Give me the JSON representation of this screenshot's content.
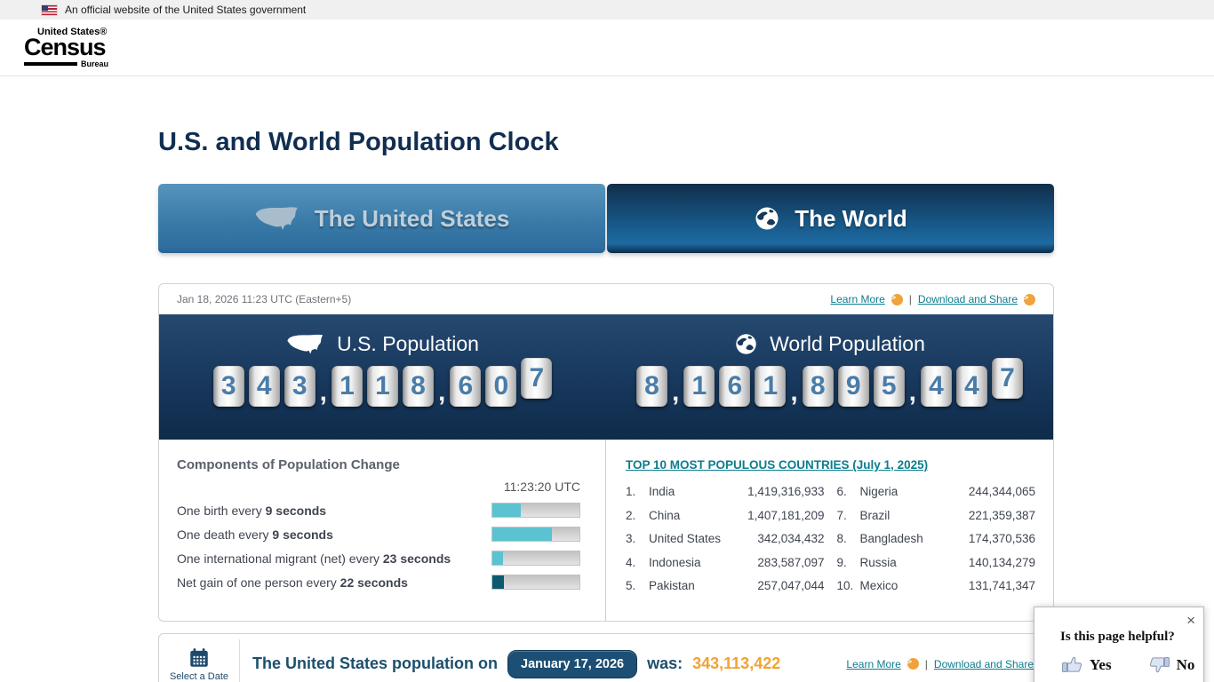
{
  "banner": {
    "text": "An official website of the United States government"
  },
  "logo": {
    "top": "United States®",
    "main": "Census",
    "sub": "Bureau"
  },
  "page": {
    "title": "U.S. and World Population Clock"
  },
  "tabs": {
    "us": "The United States",
    "world": "The World"
  },
  "panel": {
    "datetime": "Jan 18, 2026 11:23 UTC (Eastern+5)",
    "learn_more": "Learn More",
    "download_share": "Download and Share",
    "us_title": "U.S. Population",
    "us_value": "343,118,607",
    "world_title": "World Population",
    "world_value": "8,161,895,447"
  },
  "components": {
    "title": "Components of Population Change",
    "time": "11:23:20 UTC",
    "rows": [
      {
        "label": "One birth every",
        "bold": "9 seconds",
        "fill_pct": 33,
        "fill_color": "#5bc2d2"
      },
      {
        "label": "One death every",
        "bold": "9 seconds",
        "fill_pct": 68,
        "fill_color": "#5bc2d2"
      },
      {
        "label": "One international migrant (net) every",
        "bold": "23 seconds",
        "fill_pct": 12,
        "fill_color": "#5bc2d2"
      },
      {
        "label": "Net gain of one person every",
        "bold": "22 seconds",
        "fill_pct": 13,
        "fill_color": "#0b5a6e"
      }
    ]
  },
  "top10": {
    "title": "TOP 10 MOST POPULOUS COUNTRIES (July 1, 2025)",
    "columns": [
      [
        {
          "rank": "1.",
          "name": "India",
          "value": "1,419,316,933"
        },
        {
          "rank": "2.",
          "name": "China",
          "value": "1,407,181,209"
        },
        {
          "rank": "3.",
          "name": "United States",
          "value": "342,034,432"
        },
        {
          "rank": "4.",
          "name": "Indonesia",
          "value": "283,587,097"
        },
        {
          "rank": "5.",
          "name": "Pakistan",
          "value": "257,047,044"
        }
      ],
      [
        {
          "rank": "6.",
          "name": "Nigeria",
          "value": "244,344,065"
        },
        {
          "rank": "7.",
          "name": "Brazil",
          "value": "221,359,387"
        },
        {
          "rank": "8.",
          "name": "Bangladesh",
          "value": "174,370,536"
        },
        {
          "rank": "9.",
          "name": "Russia",
          "value": "140,134,279"
        },
        {
          "rank": "10.",
          "name": "Mexico",
          "value": "131,741,347"
        }
      ]
    ]
  },
  "footer": {
    "select_date": "Select a Date",
    "statement_prefix": "The United States population on",
    "date": "January 17, 2026",
    "statement_mid": "was:",
    "value": "343,113,422",
    "learn_more": "Learn More",
    "download_share": "Download and Share"
  },
  "feedback": {
    "question": "Is this page helpful?",
    "yes": "Yes",
    "no": "No"
  },
  "colors": {
    "accent_teal": "#0c7d8f",
    "badge_orange": "#f0a33c",
    "value_orange": "#f0a332",
    "title_navy": "#112e51",
    "statement_navy": "#1c4f6e"
  }
}
